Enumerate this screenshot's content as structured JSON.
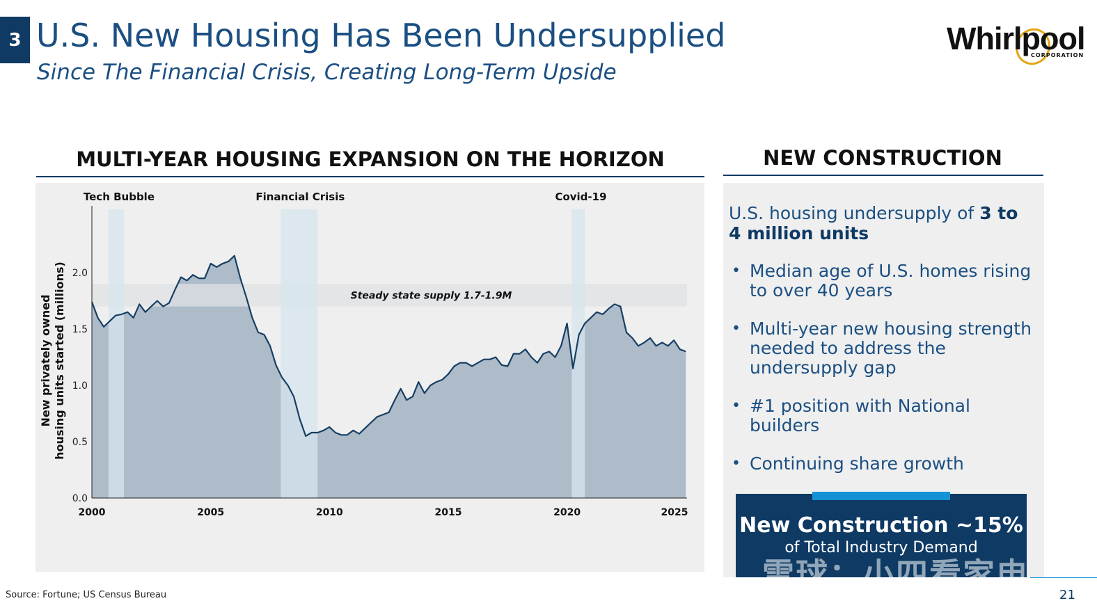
{
  "slide": {
    "number": "3",
    "title": "U.S. New Housing Has Been Undersupplied",
    "subtitle": "Since The Financial Crisis, Creating Long-Term Upside",
    "source": "Source: Fortune; US Census Bureau",
    "page_number": "21"
  },
  "logo": {
    "name": "Whirlpool",
    "sub": "CORPORATION"
  },
  "chart_heading": "MULTI-YEAR HOUSING EXPANSION ON THE HORIZON",
  "chart_data": {
    "type": "area",
    "ylabel_line1": "New privately owned",
    "ylabel_line2": "housing units started (millions)",
    "ylim": [
      0,
      2.5
    ],
    "yticks": [
      "0.0",
      "0.5",
      "1.0",
      "1.5",
      "2.0"
    ],
    "xticks": [
      "2000",
      "2005",
      "2010",
      "2015",
      "2020",
      "2025"
    ],
    "xlim": [
      2000,
      2025.05
    ],
    "grid": false,
    "shaded_periods": [
      {
        "label": "Tech Bubble",
        "start": 2000.7,
        "end": 2001.35
      },
      {
        "label": "Financial Crisis",
        "start": 2007.95,
        "end": 2009.5
      },
      {
        "label": "Covid-19",
        "start": 2020.2,
        "end": 2020.75
      }
    ],
    "steady_state_band": {
      "label": "Steady state supply 1.7-1.9M",
      "low": 1.7,
      "high": 1.9
    },
    "x": [
      2000.0,
      2000.25,
      2000.5,
      2000.75,
      2001.0,
      2001.25,
      2001.5,
      2001.75,
      2002.0,
      2002.25,
      2002.5,
      2002.75,
      2003.0,
      2003.25,
      2003.5,
      2003.75,
      2004.0,
      2004.25,
      2004.5,
      2004.75,
      2005.0,
      2005.25,
      2005.5,
      2005.75,
      2006.0,
      2006.25,
      2006.5,
      2006.75,
      2007.0,
      2007.25,
      2007.5,
      2007.75,
      2008.0,
      2008.25,
      2008.5,
      2008.75,
      2009.0,
      2009.25,
      2009.5,
      2009.75,
      2010.0,
      2010.25,
      2010.5,
      2010.75,
      2011.0,
      2011.25,
      2011.5,
      2011.75,
      2012.0,
      2012.25,
      2012.5,
      2012.75,
      2013.0,
      2013.25,
      2013.5,
      2013.75,
      2014.0,
      2014.25,
      2014.5,
      2014.75,
      2015.0,
      2015.25,
      2015.5,
      2015.75,
      2016.0,
      2016.25,
      2016.5,
      2016.75,
      2017.0,
      2017.25,
      2017.5,
      2017.75,
      2018.0,
      2018.25,
      2018.5,
      2018.75,
      2019.0,
      2019.25,
      2019.5,
      2019.75,
      2020.0,
      2020.25,
      2020.5,
      2020.75,
      2021.0,
      2021.25,
      2021.5,
      2021.75,
      2022.0,
      2022.25,
      2022.5,
      2022.75,
      2023.0,
      2023.25,
      2023.5,
      2023.75,
      2024.0,
      2024.25,
      2024.5,
      2024.75,
      2025.0
    ],
    "values": [
      1.74,
      1.6,
      1.52,
      1.57,
      1.62,
      1.63,
      1.65,
      1.6,
      1.72,
      1.65,
      1.7,
      1.75,
      1.7,
      1.73,
      1.85,
      1.96,
      1.93,
      1.98,
      1.95,
      1.95,
      2.08,
      2.05,
      2.08,
      2.1,
      2.15,
      1.95,
      1.78,
      1.6,
      1.47,
      1.45,
      1.35,
      1.18,
      1.07,
      1.0,
      0.9,
      0.7,
      0.55,
      0.58,
      0.58,
      0.6,
      0.63,
      0.58,
      0.56,
      0.56,
      0.6,
      0.57,
      0.62,
      0.67,
      0.72,
      0.74,
      0.76,
      0.87,
      0.97,
      0.87,
      0.9,
      1.03,
      0.93,
      1.0,
      1.03,
      1.05,
      1.1,
      1.17,
      1.2,
      1.2,
      1.17,
      1.2,
      1.23,
      1.23,
      1.25,
      1.18,
      1.17,
      1.28,
      1.28,
      1.32,
      1.25,
      1.2,
      1.28,
      1.3,
      1.25,
      1.35,
      1.55,
      1.15,
      1.45,
      1.55,
      1.6,
      1.65,
      1.63,
      1.68,
      1.72,
      1.7,
      1.47,
      1.42,
      1.35,
      1.38,
      1.42,
      1.35,
      1.38,
      1.35,
      1.4,
      1.32,
      1.3
    ]
  },
  "right": {
    "heading": "NEW CONSTRUCTION",
    "lead_plain": "U.S. housing undersupply of ",
    "lead_bold": "3 to 4 million units",
    "bullets": [
      "Median age of U.S. homes rising to over 40 years",
      "Multi-year new housing strength needed to address the undersupply gap",
      "#1 position with National builders",
      "Continuing share growth"
    ],
    "bullet_symbol": "•",
    "callout_main": "New Construction ~15%",
    "callout_sub": "of Total Industry Demand"
  },
  "watermark": "雪球：小四看家电",
  "colors": {
    "navy": "#0e3a64",
    "accent_bar": "#1592d6",
    "area_fill": "#aebbc9",
    "line": "#163f63",
    "band": "#dfe1e4",
    "shade": "#d6e5ee"
  }
}
